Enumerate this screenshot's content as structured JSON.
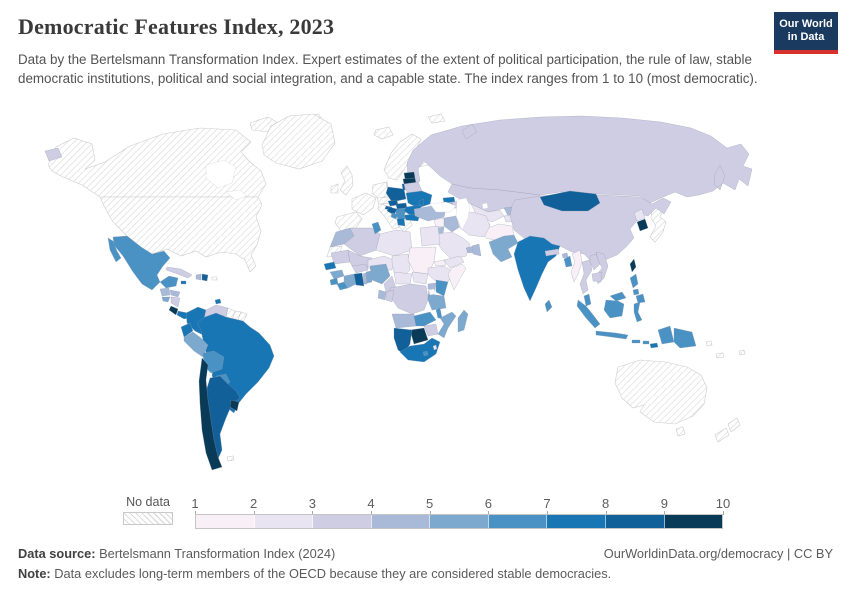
{
  "header": {
    "title": "Democratic Features Index, 2023",
    "subtitle": "Data by the Bertelsmann Transformation Index. Expert estimates of the extent of political participation, the rule of law, stable democratic institutions, political and social integration, and a capable state. The index ranges from 1 to 10 (most democratic).",
    "logo": {
      "line1": "Our World",
      "line2": "in Data",
      "bg": "#1a3a5f",
      "accent": "#d7312e"
    }
  },
  "chart_data": {
    "type": "choropleth",
    "title": "Democratic Features Index, 2023",
    "year": "2023",
    "value_range": [
      1,
      10
    ],
    "legend": {
      "no_data_label": "No data",
      "ticks": [
        "1",
        "2",
        "3",
        "4",
        "5",
        "6",
        "7",
        "8",
        "9",
        "10"
      ],
      "position": "bottom"
    },
    "colors": [
      "#f9f0f7",
      "#e9e4f1",
      "#cfcde3",
      "#a9bad8",
      "#7ea9ce",
      "#4a92c4",
      "#1976b4",
      "#12609a",
      "#093a58"
    ],
    "countries": {
      "Canada": null,
      "United States": null,
      "Greenland": null,
      "Iceland": null,
      "United Kingdom": null,
      "Ireland": null,
      "Norway": null,
      "Sweden": null,
      "Finland": null,
      "Denmark": null,
      "Germany": null,
      "France": null,
      "Spain": null,
      "Italy": null,
      "Austria": null,
      "Greece": null,
      "Svalbard": null,
      "Japan": null,
      "Australia": null,
      "New Zealand": null,
      "Fiji": null,
      "New Caledonia": null,
      "Solomon Islands": null,
      "Israel": null,
      "Guyana": null,
      "Suriname": null,
      "French Guiana": null,
      "Puerto Rico": null,
      "Western Sahara": null,
      "Falkland Islands": null,
      "Mexico": 6,
      "Guatemala": 4,
      "Honduras": 4,
      "El Salvador": 5,
      "Nicaragua": 3,
      "Costa Rica": 10,
      "Panama": 7,
      "Cuba": 3,
      "Jamaica": 7,
      "Haiti": 4,
      "Dominican Republic": 8,
      "Trinidad and Tobago": 7,
      "Colombia": 7,
      "Venezuela": 3,
      "Ecuador": 7,
      "Peru": 5,
      "Brazil": 7,
      "Bolivia": 6,
      "Paraguay": 6,
      "Chile": 10,
      "Argentina": 8,
      "Uruguay": 10,
      "Estonia": 10,
      "Latvia": 9,
      "Lithuania": 8,
      "Poland": 8,
      "Belarus": 3,
      "Ukraine": 7,
      "Moldova": 7,
      "Czechia": 8,
      "Slovakia": 8,
      "Hungary": 6,
      "Romania": 7,
      "Bulgaria": 7,
      "Serbia": 6,
      "Croatia": 8,
      "Bosnia and Herzegovina": 6,
      "Albania": 7,
      "Slovenia": 8,
      "Russia": 3,
      "Kazakhstan": 3,
      "Uzbekistan": 2,
      "Turkmenistan": 2,
      "Kyrgyzstan": 4,
      "Tajikistan": 2,
      "Afghanistan": 1,
      "Pakistan": 5,
      "Georgia": 7,
      "Armenia": 5,
      "Azerbaijan": 3,
      "Turkey": 4,
      "Syria": 1,
      "Jordan": 4,
      "Iraq": 4,
      "Iran": 2,
      "Saudi Arabia": 2,
      "United Arab Emirates": 4,
      "Oman": 4,
      "Yemen": 2,
      "Egypt": 2,
      "Morocco": 4,
      "Algeria": 3,
      "Tunisia": 6,
      "Libya": 2,
      "Mauritania": 3,
      "Mali": 3,
      "Niger": 2,
      "Chad": 2,
      "Sudan": 1,
      "Eritrea": 1,
      "Ethiopia": 2,
      "Somalia": 1,
      "Senegal": 7,
      "Guinea": 5,
      "Sierra Leone": 6,
      "Liberia": 6,
      "Cote d'Ivoire": 5,
      "Ghana": 8,
      "Togo": 4,
      "Benin": 5,
      "Burkina Faso": 3,
      "Nigeria": 5,
      "Cameroon": 3,
      "Central African Republic": 2,
      "South Sudan": 2,
      "Uganda": 4,
      "Kenya": 6,
      "Rwanda": 3,
      "Democratic Republic of Congo": 3,
      "Congo": 3,
      "Gabon": 4,
      "Angola": 4,
      "Zambia": 6,
      "Tanzania": 5,
      "Malawi": 6,
      "Mozambique": 5,
      "Zimbabwe": 3,
      "Botswana": 9,
      "Namibia": 8,
      "South Africa": 7,
      "Lesotho": 6,
      "Eswatini": 2,
      "Madagascar": 5,
      "China": 3,
      "Mongolia": 8,
      "North Korea": 2,
      "South Korea": 9,
      "Taiwan": 10,
      "India": 7,
      "Nepal": 3,
      "Bhutan": 4,
      "Bangladesh": 6,
      "Sri Lanka": 6,
      "Myanmar": 1,
      "Thailand": 3,
      "Laos": 3,
      "Vietnam": 3,
      "Cambodia": 3,
      "Malaysia": 6,
      "Indonesia": 6,
      "Philippines": 6,
      "Papua New Guinea": 6,
      "Timor-Leste": 7
    }
  },
  "footer": {
    "source_label": "Data source:",
    "source_value": " Bertelsmann Transformation Index (2024)",
    "credit": "OurWorldinData.org/democracy | CC BY",
    "note_label": "Note:",
    "note_value": " Data excludes long-term members of the OECD because they are considered stable democracies."
  }
}
